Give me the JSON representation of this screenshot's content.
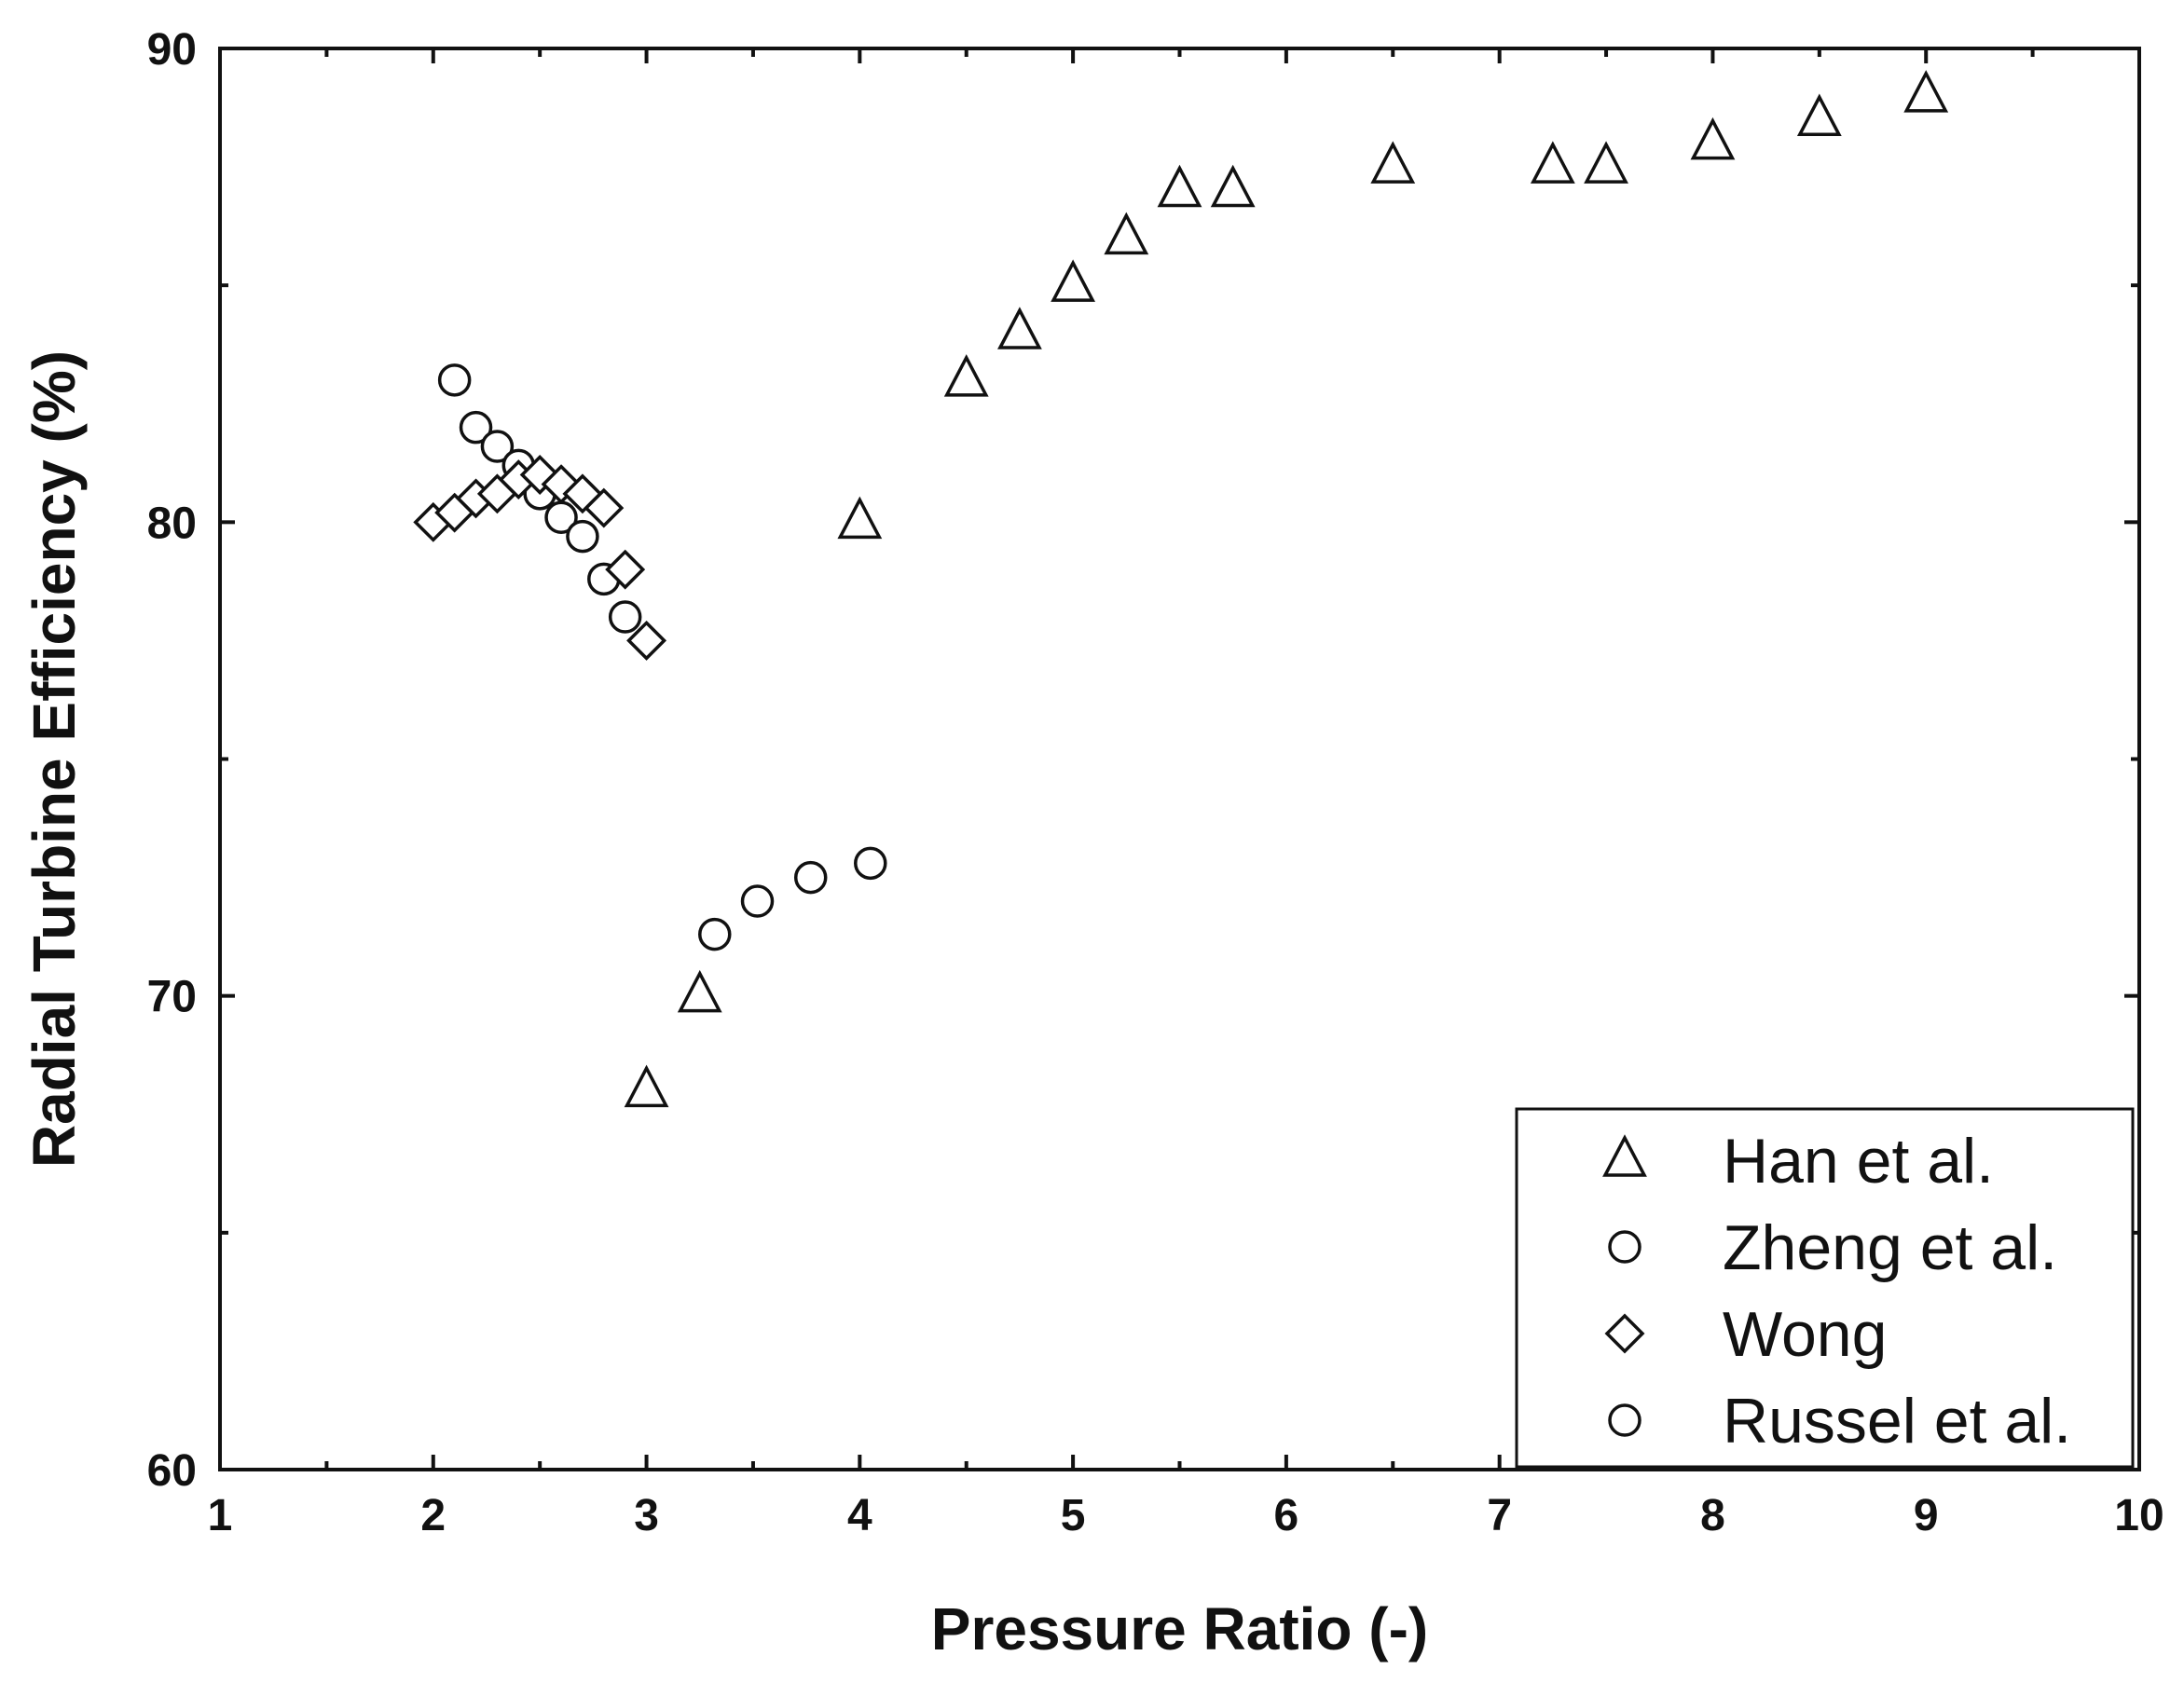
{
  "chart_data": {
    "type": "scatter",
    "title": "",
    "xlabel": "Pressure Ratio (-)",
    "ylabel": "Radial Turbine Efficiency (%)",
    "xlim": [
      1,
      10
    ],
    "ylim": [
      60,
      90
    ],
    "x_ticks": [
      "1",
      "2",
      "3",
      "4",
      "5",
      "6",
      "7",
      "8",
      "9",
      "10"
    ],
    "y_ticks": [
      "60",
      "70",
      "80",
      "90"
    ],
    "grid": false,
    "legend_position": "bottom-right",
    "series": [
      {
        "name": "Han et al.",
        "marker": "triangle",
        "points": [
          [
            3.0,
            68.0
          ],
          [
            3.25,
            70.0
          ],
          [
            4.0,
            80.0
          ],
          [
            4.5,
            83.0
          ],
          [
            4.75,
            84.0
          ],
          [
            5.0,
            85.0
          ],
          [
            5.25,
            86.0
          ],
          [
            5.5,
            87.0
          ],
          [
            5.75,
            87.0
          ],
          [
            6.5,
            87.5
          ],
          [
            7.25,
            87.5
          ],
          [
            7.5,
            87.5
          ],
          [
            8.0,
            88.0
          ],
          [
            8.5,
            88.5
          ],
          [
            9.0,
            89.0
          ]
        ]
      },
      {
        "name": "Zheng et al.",
        "marker": "circle",
        "points": [
          [
            2.1,
            83.0
          ],
          [
            2.2,
            82.0
          ],
          [
            2.3,
            81.6
          ],
          [
            2.4,
            81.2
          ],
          [
            2.5,
            80.6
          ],
          [
            2.6,
            80.1
          ],
          [
            2.7,
            79.7
          ],
          [
            2.8,
            78.8
          ],
          [
            2.9,
            78.0
          ]
        ]
      },
      {
        "name": "Wong",
        "marker": "diamond",
        "points": [
          [
            2.0,
            80.0
          ],
          [
            2.1,
            80.2
          ],
          [
            2.2,
            80.5
          ],
          [
            2.3,
            80.6
          ],
          [
            2.4,
            80.9
          ],
          [
            2.5,
            81.0
          ],
          [
            2.6,
            80.8
          ],
          [
            2.7,
            80.6
          ],
          [
            2.8,
            80.3
          ],
          [
            2.9,
            79.0
          ],
          [
            3.0,
            77.5
          ]
        ]
      },
      {
        "name": "Russel et al.",
        "marker": "circle",
        "points": [
          [
            3.32,
            71.3
          ],
          [
            3.52,
            72.0
          ],
          [
            3.77,
            72.5
          ],
          [
            4.05,
            72.8
          ]
        ]
      }
    ]
  }
}
